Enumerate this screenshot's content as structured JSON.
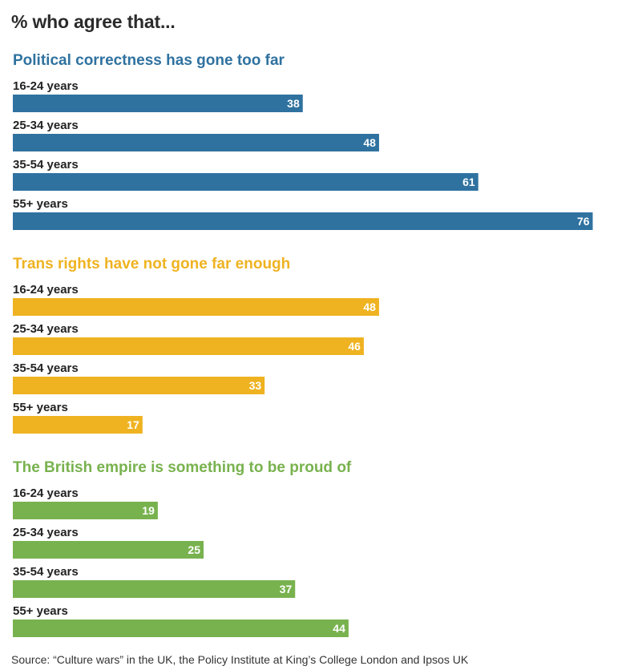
{
  "title": "% who agree that...",
  "source": "Source: “Culture wars” in the UK, the Policy Institute at King’s College London and Ipsos UK",
  "chart_data": [
    {
      "type": "bar",
      "orientation": "horizontal",
      "title": "Political correctness has gone too far",
      "color": "#2f72a0",
      "categories": [
        "16-24 years",
        "25-34 years",
        "35-54 years",
        "55+ years"
      ],
      "values": [
        38,
        48,
        61,
        76
      ],
      "xlim": [
        0,
        80
      ]
    },
    {
      "type": "bar",
      "orientation": "horizontal",
      "title": "Trans rights have not gone far enough",
      "color": "#efb321",
      "categories": [
        "16-24 years",
        "25-34 years",
        "35-54 years",
        "55+ years"
      ],
      "values": [
        48,
        46,
        33,
        17
      ],
      "xlim": [
        0,
        80
      ]
    },
    {
      "type": "bar",
      "orientation": "horizontal",
      "title": "The British empire is something to be proud of",
      "color": "#78b24e",
      "categories": [
        "16-24 years",
        "25-34 years",
        "35-54 years",
        "55+ years"
      ],
      "values": [
        19,
        25,
        37,
        44
      ],
      "xlim": [
        0,
        80
      ]
    }
  ]
}
